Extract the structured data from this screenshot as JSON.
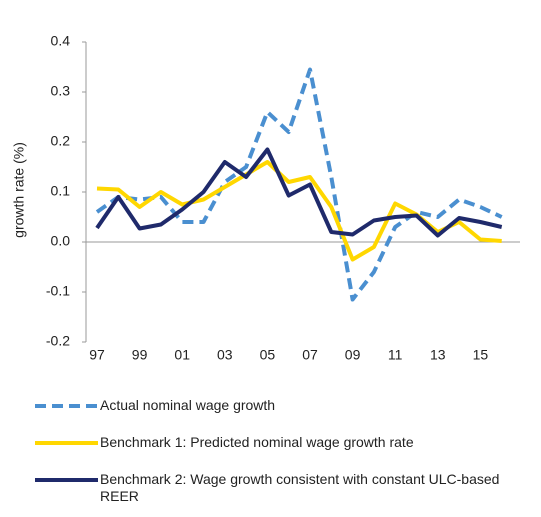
{
  "chart_data": {
    "type": "line",
    "y_label": "growth rate (%)",
    "categories": [
      "97",
      null,
      "99",
      null,
      "01",
      null,
      "03",
      null,
      "05",
      null,
      "07",
      null,
      "09",
      null,
      "11",
      null,
      "13",
      null,
      "15",
      null
    ],
    "series": [
      {
        "name": "Actual nominal wage growth",
        "color": "#4a8fd0",
        "style": "dashed",
        "values": [
          0.06,
          0.09,
          0.085,
          0.09,
          0.04,
          0.04,
          0.12,
          0.15,
          0.26,
          0.22,
          0.345,
          0.13,
          -0.115,
          -0.06,
          0.03,
          0.06,
          0.05,
          0.085,
          0.07,
          0.05
        ]
      },
      {
        "name": "Benchmark 1: Predicted nominal wage growth rate",
        "color": "#ffd700",
        "style": "solid",
        "values": [
          0.107,
          0.105,
          0.07,
          0.1,
          0.075,
          0.085,
          0.11,
          0.135,
          0.16,
          0.12,
          0.13,
          0.07,
          -0.035,
          -0.01,
          0.077,
          0.055,
          0.02,
          0.04,
          0.005,
          0.002
        ]
      },
      {
        "name": "Benchmark 2: Wage growth consistent with constant ULC-based REER",
        "color": "#1f2a6b",
        "style": "solid",
        "values": [
          0.028,
          0.09,
          0.027,
          0.035,
          0.065,
          0.1,
          0.16,
          0.13,
          0.185,
          0.093,
          0.115,
          0.02,
          0.015,
          0.043,
          0.05,
          0.053,
          0.013,
          0.048,
          0.04,
          0.03
        ]
      }
    ],
    "ylim": [
      -0.2,
      0.4
    ],
    "yticks": [
      -0.2,
      -0.1,
      {
        "value": 0,
        "label": "0.0"
      },
      0.1,
      0.2,
      0.3,
      0.4
    ],
    "grid": false
  }
}
